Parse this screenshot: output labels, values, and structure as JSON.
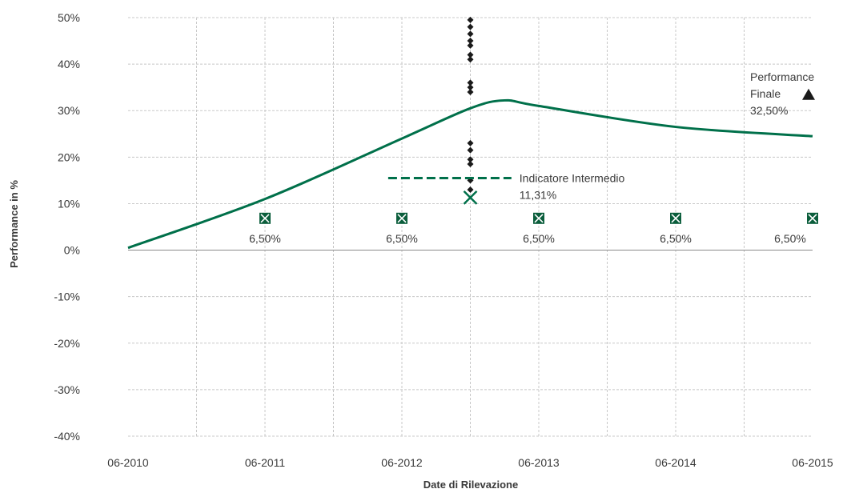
{
  "chart_data": {
    "type": "line",
    "xlabel": "Date di Rilevazione",
    "ylabel": "Performance in %",
    "x_ticks": [
      "06-2010",
      "06-2011",
      "06-2012",
      "06-2013",
      "06-2014",
      "06-2015"
    ],
    "y_ticks": [
      "50%",
      "40%",
      "30%",
      "20%",
      "10%",
      "0%",
      "-10%",
      "-20%",
      "-30%",
      "-40%"
    ],
    "ylim": [
      -40,
      50
    ],
    "xlim_years": [
      0,
      5
    ],
    "grid": true,
    "series": [
      {
        "color": "#00704a",
        "points": [
          {
            "t": 0.0,
            "y": 0.5
          },
          {
            "t": 1.0,
            "y": 11.0
          },
          {
            "t": 2.0,
            "y": 24.0
          },
          {
            "t": 2.5,
            "y": 30.5
          },
          {
            "t": 2.75,
            "y": 32.2
          },
          {
            "t": 3.0,
            "y": 31.0
          },
          {
            "t": 4.0,
            "y": 26.5
          },
          {
            "t": 5.0,
            "y": 24.5
          }
        ]
      }
    ],
    "scatter_column": {
      "t": 2.5,
      "values": [
        49.5,
        48.0,
        46.5,
        45.0,
        44.0,
        42.0,
        41.0,
        36.0,
        35.0,
        34.0,
        23.0,
        21.5,
        19.5,
        18.5,
        15.0,
        13.0
      ]
    },
    "indicator": {
      "label": "Indicatore Intermedio",
      "value_label": "11,31%",
      "value": 11.31,
      "t": 2.5,
      "dash_level": 15.5,
      "dash_range_t": [
        1.9,
        2.8
      ]
    },
    "coupons": [
      {
        "t": 1.0,
        "label": "6,50%",
        "value": 6.5
      },
      {
        "t": 2.0,
        "label": "6,50%",
        "value": 6.5
      },
      {
        "t": 3.0,
        "label": "6,50%",
        "value": 6.5
      },
      {
        "t": 4.0,
        "label": "6,50%",
        "value": 6.5
      },
      {
        "t": 5.0,
        "label": "6,50%",
        "value": 6.5
      }
    ],
    "final": {
      "label_line1": "Performance",
      "label_line2": "Finale",
      "value_label": "32,50%",
      "value": 32.5
    },
    "colors": {
      "line": "#00704a",
      "coupon_icon": "#0b5e3c",
      "scatter": "#1a1a1a",
      "grid": "#c8c8c8",
      "zero_line": "#8a8a8a"
    }
  }
}
